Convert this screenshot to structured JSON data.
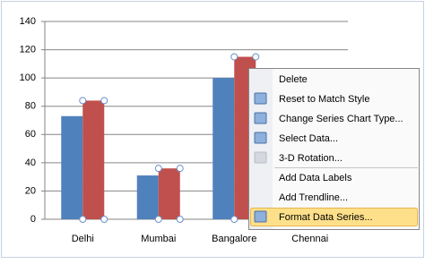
{
  "chart_data": {
    "type": "bar",
    "categories": [
      "Delhi",
      "Mumbai",
      "Bangalore",
      "Chennai"
    ],
    "series": [
      {
        "color": "#4f81bd",
        "values": [
          73,
          31,
          100,
          null
        ]
      },
      {
        "color": "#c0504d",
        "values": [
          84,
          36,
          115,
          null
        ]
      }
    ],
    "ylim": [
      0,
      140
    ],
    "yticks": [
      0,
      20,
      40,
      60,
      80,
      100,
      120,
      140
    ],
    "grid": true
  },
  "context_menu": {
    "items": [
      {
        "label": "Delete",
        "enabled": true
      },
      {
        "label": "Reset to Match Style",
        "enabled": true
      },
      {
        "label": "Change Series Chart Type...",
        "enabled": true
      },
      {
        "label": "Select Data...",
        "enabled": true
      },
      {
        "label": "3-D Rotation...",
        "enabled": false
      },
      {
        "label": "Add Data Labels",
        "enabled": true
      },
      {
        "label": "Add Trendline...",
        "enabled": true
      },
      {
        "label": "Format Data Series...",
        "enabled": true,
        "highlighted": true
      }
    ]
  }
}
